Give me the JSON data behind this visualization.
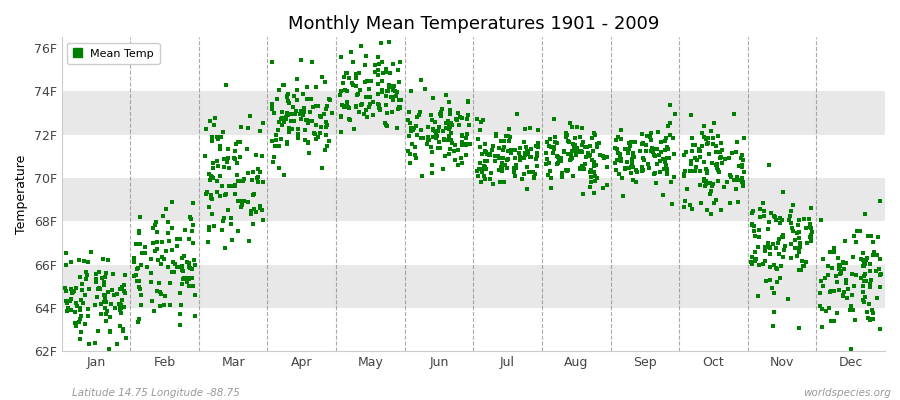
{
  "title": "Monthly Mean Temperatures 1901 - 2009",
  "ylabel": "Temperature",
  "xlabel_labels": [
    "Jan",
    "Feb",
    "Mar",
    "Apr",
    "May",
    "Jun",
    "Jul",
    "Aug",
    "Sep",
    "Oct",
    "Nov",
    "Dec"
  ],
  "ytick_labels": [
    "62F",
    "64F",
    "66F",
    "68F",
    "70F",
    "72F",
    "74F",
    "76F"
  ],
  "ytick_values": [
    62,
    64,
    66,
    68,
    70,
    72,
    74,
    76
  ],
  "ylim": [
    62,
    76.5
  ],
  "scatter_color": "#008000",
  "background_color": "#ffffff",
  "band_colors": [
    "#ffffff",
    "#e8e8e8",
    "#ffffff",
    "#e8e8e8",
    "#ffffff",
    "#e8e8e8",
    "#ffffff"
  ],
  "grid_color": "#888888",
  "legend_label": "Mean Temp",
  "footer_left": "Latitude 14.75 Longitude -88.75",
  "footer_right": "worldspecies.org",
  "years": 109,
  "month_means": [
    64.5,
    65.8,
    70.0,
    72.8,
    73.8,
    72.0,
    71.0,
    71.0,
    71.0,
    70.5,
    67.0,
    65.5
  ],
  "month_stds": [
    1.1,
    1.3,
    1.4,
    1.0,
    1.0,
    0.85,
    0.75,
    0.75,
    0.75,
    0.9,
    1.3,
    1.3
  ],
  "seed": 42,
  "marker_size": 2.5,
  "title_fontsize": 13,
  "axis_fontsize": 9,
  "legend_fontsize": 8,
  "footer_fontsize": 7.5
}
